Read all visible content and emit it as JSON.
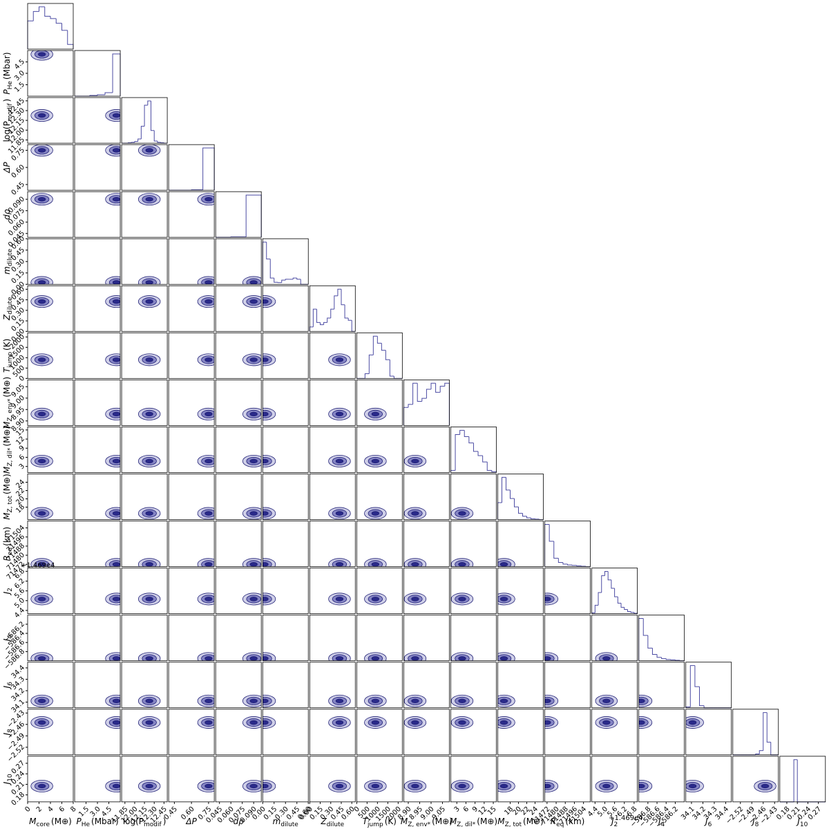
{
  "chart_data": {
    "type": "corner",
    "color": "#4b4ba3",
    "contour_fills": [
      "#cfcfe8",
      "#8585c4",
      "#2a2a8a"
    ],
    "contour_stroke": "#1f1f75",
    "parameters": [
      {
        "label": "M",
        "label_sub": "core",
        "label_unit": "(M⊕)",
        "xlim": [
          0,
          8
        ],
        "xticks": [
          0,
          2,
          4,
          6,
          8
        ],
        "bins": [
          0,
          1,
          2,
          3,
          4,
          5,
          6,
          7,
          8
        ],
        "counts": [
          60,
          80,
          90,
          70,
          65,
          55,
          40,
          10
        ]
      },
      {
        "label": "P",
        "label_sub": "He",
        "label_unit": "(Mbar)",
        "xlim": [
          0,
          6
        ],
        "xticks": [
          1.5,
          {
            "value": 3,
            "label": "3.0"
          },
          4.5
        ],
        "bins": [
          0,
          1,
          2,
          3,
          4,
          5,
          6
        ],
        "counts": [
          0,
          0,
          1,
          2,
          5,
          60
        ]
      },
      {
        "label": "log(P",
        "label_sub": "modif",
        "label_unit": ")",
        "xlim": [
          11.8,
          12.5
        ],
        "xticks": [
          11.85,
          {
            "value": 12,
            "label": "12.00"
          },
          12.15,
          {
            "value": 12.3,
            "label": "12.30"
          },
          12.45
        ],
        "bins": [
          11.8,
          11.85,
          11.9,
          11.95,
          12,
          12.05,
          12.1,
          12.15,
          12.2,
          12.25,
          12.3,
          12.35,
          12.4,
          12.45,
          12.5
        ],
        "counts": [
          0,
          0,
          1,
          2,
          4,
          10,
          40,
          90,
          100,
          30,
          5,
          2,
          1,
          0
        ]
      },
      {
        "label": "ΔP",
        "xlim": [
          0.4,
          0.8
        ],
        "xticks": [
          0.45,
          {
            "value": 0.6,
            "label": "0.60"
          },
          0.75
        ],
        "bins": [
          0.4,
          0.5,
          0.6,
          0.7,
          0.8
        ],
        "counts": [
          0,
          0,
          1,
          100
        ]
      },
      {
        "label": "dρ",
        "xlim": [
          0.04,
          0.1
        ],
        "xticks": [
          0.045,
          {
            "value": 0.06,
            "label": "0.060"
          },
          0.075,
          {
            "value": 0.09,
            "label": "0.090"
          }
        ],
        "bins": [
          0.04,
          0.06,
          0.08,
          0.1
        ],
        "counts": [
          0,
          1,
          100
        ]
      },
      {
        "label": "m",
        "label_sub": "dilute",
        "xlim": [
          0,
          0.6
        ],
        "xticks": [
          {
            "value": 0,
            "label": "0.00"
          },
          0.15,
          {
            "value": 0.3,
            "label": "0.30"
          },
          0.45,
          {
            "value": 0.6,
            "label": "0.60"
          }
        ],
        "bins": [
          0,
          0.05,
          0.1,
          0.15,
          0.2,
          0.25,
          0.3,
          0.35,
          0.4,
          0.45,
          0.5,
          0.55,
          0.6
        ],
        "counts": [
          100,
          60,
          15,
          5,
          4,
          10,
          12,
          12,
          15,
          12,
          0,
          0
        ]
      },
      {
        "label": "Z",
        "label_sub": "dilute",
        "xlim": [
          0,
          0.65
        ],
        "xticks": [
          {
            "value": 0,
            "label": "0.00"
          },
          0.15,
          {
            "value": 0.3,
            "label": "0.30"
          },
          0.45,
          {
            "value": 0.6,
            "label": "0.60"
          }
        ],
        "bins": [
          0,
          0.05,
          0.1,
          0.15,
          0.2,
          0.25,
          0.3,
          0.35,
          0.4,
          0.45,
          0.5,
          0.55,
          0.6,
          0.65
        ],
        "counts": [
          10,
          50,
          20,
          15,
          20,
          30,
          50,
          80,
          95,
          60,
          30,
          25,
          0
        ]
      },
      {
        "label": "T",
        "label_sub": "jump",
        "label_unit": "(K)",
        "xlim": [
          0,
          2200
        ],
        "xticks": [
          0,
          500,
          1000,
          1500,
          2000
        ],
        "bins": [
          0,
          200,
          400,
          600,
          800,
          1000,
          1200,
          1400,
          1600,
          1800,
          2000,
          2200
        ],
        "counts": [
          0,
          0,
          10,
          50,
          90,
          75,
          60,
          40,
          5,
          0,
          0
        ]
      },
      {
        "label": "M",
        "label_sub": "Z, env*",
        "label_unit": "(M⊕)",
        "xlim": [
          8.88,
          9.08
        ],
        "xticks": [
          {
            "value": 8.9,
            "label": "8.90"
          },
          8.95,
          {
            "value": 9,
            "label": "9.00"
          },
          9.05
        ],
        "bins": [
          8.88,
          8.9,
          8.92,
          8.94,
          8.96,
          8.98,
          9,
          9.02,
          9.04,
          9.06,
          9.08
        ],
        "counts": [
          30,
          35,
          70,
          40,
          45,
          60,
          70,
          55,
          65,
          70
        ]
      },
      {
        "label": "M",
        "label_sub": "Z, dil*",
        "label_unit": "(M⊕)",
        "xlim": [
          1,
          16
        ],
        "xticks": [
          3,
          6,
          9,
          12,
          15
        ],
        "bins": [
          1,
          2.5,
          4,
          5.5,
          7,
          8.5,
          10,
          11.5,
          13,
          14.5,
          16
        ],
        "counts": [
          5,
          90,
          100,
          85,
          70,
          50,
          40,
          25,
          5,
          2
        ]
      },
      {
        "label": "M",
        "label_sub": "Z, tot",
        "label_unit": "(M⊕)",
        "xlim": [
          15,
          26
        ],
        "xticks": [
          18,
          20,
          22,
          24
        ],
        "bins": [
          15,
          16,
          17,
          18,
          19,
          20,
          21,
          22,
          23,
          24,
          25,
          26
        ],
        "counts": [
          40,
          100,
          70,
          50,
          30,
          15,
          8,
          4,
          2,
          1,
          0
        ]
      },
      {
        "label": "R",
        "label_sub": "eq",
        "label_unit": "(km)",
        "xlim": [
          71470,
          71510
        ],
        "xticks": [
          71472,
          71480,
          71488,
          71496,
          71504
        ],
        "bins": [
          71470,
          71474,
          71478,
          71482,
          71486,
          71490,
          71494,
          71498,
          71502,
          71506,
          71510
        ],
        "counts": [
          100,
          60,
          20,
          10,
          6,
          4,
          3,
          2,
          1,
          0
        ]
      },
      {
        "label": "J",
        "label_sub": "2",
        "offset_label": "+1.469e4",
        "xlim": [
          4.2,
          7
        ],
        "xticks": [
          4.4,
          {
            "value": 5,
            "label": "5.0"
          },
          5.6,
          6.2,
          6.8
        ],
        "bins": [
          4.2,
          4.4,
          4.6,
          4.8,
          5,
          5.2,
          5.4,
          5.6,
          5.8,
          6,
          6.2,
          6.4,
          6.6,
          6.8,
          7
        ],
        "counts": [
          2,
          20,
          50,
          90,
          100,
          80,
          60,
          40,
          25,
          15,
          10,
          5,
          3,
          1
        ]
      },
      {
        "label": "J",
        "label_sub": "4",
        "xlim": [
          -587,
          -586
        ],
        "xticks": [
          {
            "value": -586.8,
            "label": "−586.8"
          },
          {
            "value": -586.6,
            "label": "−586.6"
          },
          {
            "value": -586.4,
            "label": "−586.4"
          },
          {
            "value": -586.2,
            "label": "−586.2"
          }
        ],
        "bins": [
          -587,
          -586.9,
          -586.8,
          -586.7,
          -586.6,
          -586.5,
          -586.4,
          -586.3,
          -586.2,
          -586.1,
          -586
        ],
        "counts": [
          100,
          60,
          30,
          15,
          8,
          5,
          3,
          2,
          1,
          0
        ]
      },
      {
        "label": "J",
        "label_sub": "6",
        "xlim": [
          34.05,
          34.45
        ],
        "xticks": [
          34.1,
          34.2,
          34.3,
          34.4
        ],
        "bins": [
          34.05,
          34.09,
          34.13,
          34.17,
          34.21,
          34.25,
          34.29,
          34.33,
          34.37,
          34.41,
          34.45
        ],
        "counts": [
          2,
          100,
          50,
          5,
          0,
          0,
          0,
          0,
          0,
          0
        ]
      },
      {
        "label": "J",
        "label_sub": "8",
        "xlim": [
          -2.54,
          -2.42
        ],
        "xticks": [
          {
            "value": -2.52,
            "label": "−2.52"
          },
          {
            "value": -2.49,
            "label": "−2.49"
          },
          {
            "value": -2.46,
            "label": "−2.46"
          },
          {
            "value": -2.43,
            "label": "−2.43"
          }
        ],
        "bins": [
          -2.54,
          -2.53,
          -2.52,
          -2.51,
          -2.5,
          -2.49,
          -2.48,
          -2.47,
          -2.46,
          -2.45,
          -2.44,
          -2.43,
          -2.42
        ],
        "counts": [
          0,
          0,
          0,
          0,
          0,
          0,
          2,
          10,
          100,
          30,
          0,
          0
        ]
      },
      {
        "label": "J",
        "label_sub": "10",
        "xlim": [
          0.16,
          0.29
        ],
        "xticks": [
          0.18,
          0.21,
          0.24,
          0.27
        ],
        "bins": [
          0.16,
          0.17,
          0.18,
          0.19,
          0.2,
          0.21,
          0.22,
          0.23,
          0.24,
          0.25,
          0.26,
          0.27,
          0.28,
          0.29
        ],
        "counts": [
          0,
          0,
          0,
          0,
          100,
          0,
          0,
          0,
          0,
          0,
          0,
          0,
          0
        ]
      }
    ]
  }
}
